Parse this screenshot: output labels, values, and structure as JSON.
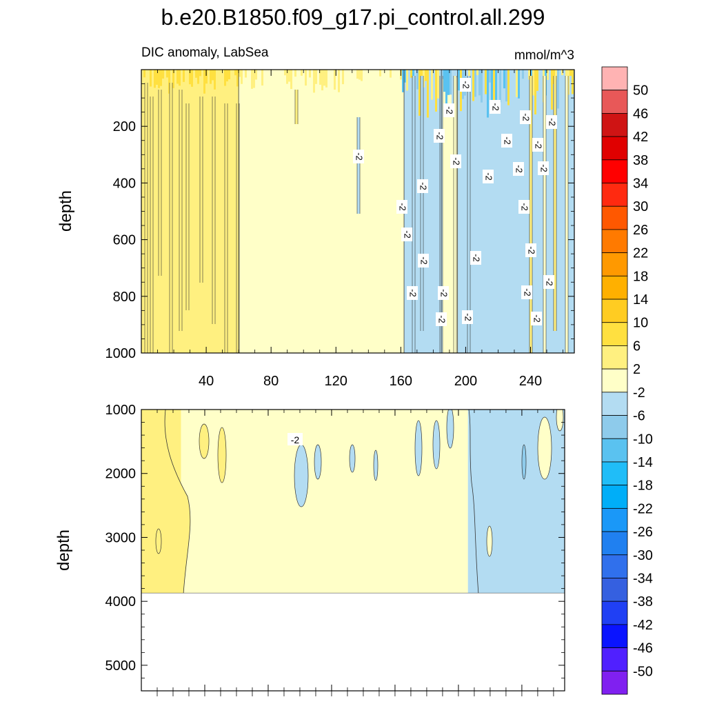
{
  "chart_data": {
    "type": "heatmap",
    "title": "b.e20.B1850.f09_g17.pi_control.all.299",
    "subtitle_left": "DIC anomaly, LabSea",
    "subtitle_right": "mmol/m^3",
    "panels": [
      {
        "name": "upper",
        "ylabel": "depth",
        "xlabel": "",
        "xlim": [
          0,
          267
        ],
        "ylim": [
          0,
          1000
        ],
        "y_inverted": true,
        "xticks": [
          "40",
          "80",
          "120",
          "160",
          "200",
          "240"
        ],
        "yticks": [
          "200",
          "400",
          "600",
          "800",
          "1000"
        ],
        "ytick_values": [
          200,
          400,
          600,
          800,
          1000
        ],
        "xtick_values": [
          40,
          80,
          120,
          160,
          200,
          240
        ],
        "contour_label": "-2",
        "regions": [
          {
            "x0": 0,
            "x1": 60,
            "level": "2 to 6"
          },
          {
            "x0": 60,
            "x1": 162,
            "level": "-2 to 2"
          },
          {
            "x0": 162,
            "x1": 185,
            "level": "-6 to -2"
          },
          {
            "x0": 185,
            "x1": 195,
            "level": "-2 to 2"
          },
          {
            "x0": 195,
            "x1": 267,
            "level": "-6 to -2"
          }
        ]
      },
      {
        "name": "lower",
        "ylabel": "depth",
        "xlabel": "",
        "xlim": [
          0,
          267
        ],
        "ylim": [
          1000,
          5400
        ],
        "y_inverted": true,
        "xticks": [],
        "yticks": [
          "1000",
          "2000",
          "3000",
          "4000",
          "5000"
        ],
        "ytick_values": [
          1000,
          2000,
          3000,
          4000,
          5000
        ],
        "data_bottom_depth": 3870,
        "contour_label": "-2",
        "regions": [
          {
            "x0": 0,
            "x1": 25,
            "level": "2 to 6"
          },
          {
            "x0": 25,
            "x1": 206,
            "level": "-2 to 2"
          },
          {
            "x0": 206,
            "x1": 267,
            "level": "-6 to -2"
          }
        ]
      }
    ],
    "colorbar": {
      "labels": [
        "50",
        "46",
        "42",
        "38",
        "34",
        "30",
        "26",
        "22",
        "18",
        "14",
        "10",
        "6",
        "2",
        "-2",
        "-6",
        "-10",
        "-14",
        "-18",
        "-22",
        "-26",
        "-30",
        "-34",
        "-38",
        "-42",
        "-46",
        "-50"
      ],
      "colors": [
        "#ffb3b3",
        "#e85858",
        "#cf1414",
        "#e00000",
        "#ff0000",
        "#ff2a10",
        "#ff5800",
        "#ff7a00",
        "#ff9900",
        "#ffb000",
        "#ffcc22",
        "#ffe040",
        "#fff080",
        "#ffffc8",
        "#b3dcf2",
        "#8ecbeb",
        "#5ac2f0",
        "#20bdf8",
        "#00aef8",
        "#1a98f8",
        "#2080f0",
        "#3070ec",
        "#3560e0",
        "#2040f4",
        "#0a14ff",
        "#5020ff",
        "#8020f0"
      ]
    },
    "level_colors": {
      "2 to 6": "#fff080",
      "-2 to 2": "#ffffc8",
      "-6 to -2": "#b3dcf2"
    }
  }
}
